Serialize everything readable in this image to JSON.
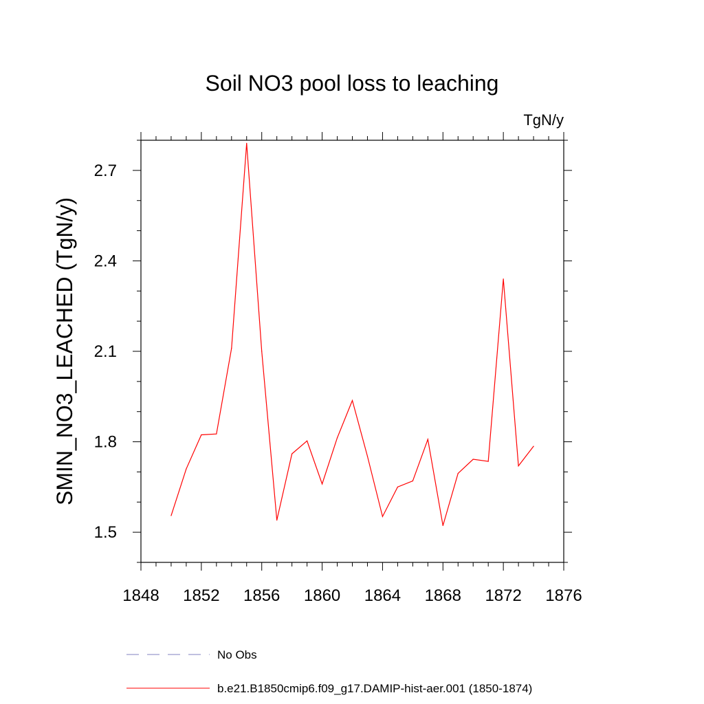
{
  "chart_data": {
    "type": "line",
    "title": "Soil NO3 pool loss to leaching",
    "units": "TgN/y",
    "xlabel": "",
    "ylabel": "SMIN_NO3_LEACHED  (TgN/y)",
    "xlim": [
      1848,
      1876
    ],
    "ylim": [
      1.4,
      2.8
    ],
    "xticks": [
      "1848",
      "1852",
      "1856",
      "1860",
      "1864",
      "1868",
      "1872",
      "1876"
    ],
    "yticks": [
      "1.5",
      "1.8",
      "2.1",
      "2.4",
      "2.7"
    ],
    "grid": false,
    "legend_position": "bottom",
    "series": [
      {
        "name": "b.e21.B1850cmip6.f09_g17.DAMIP-hist-aer.001 (1850-1874)",
        "color": "#ff0000",
        "style": "solid",
        "x": [
          1850,
          1851,
          1852,
          1853,
          1854,
          1855,
          1856,
          1857,
          1858,
          1859,
          1860,
          1861,
          1862,
          1863,
          1864,
          1865,
          1866,
          1867,
          1868,
          1869,
          1870,
          1871,
          1872,
          1873,
          1874
        ],
        "values": [
          1.555,
          1.71,
          1.823,
          1.826,
          2.11,
          2.79,
          2.1,
          1.54,
          1.76,
          1.803,
          1.66,
          1.813,
          1.937,
          1.752,
          1.552,
          1.65,
          1.67,
          1.808,
          1.522,
          1.695,
          1.742,
          1.735,
          2.34,
          1.72,
          1.785
        ]
      }
    ],
    "legend": [
      {
        "label": "No Obs",
        "color": "#8080c0",
        "style": "dashed"
      },
      {
        "label": "b.e21.B1850cmip6.f09_g17.DAMIP-hist-aer.001 (1850-1874)",
        "color": "#ff0000",
        "style": "solid"
      }
    ]
  }
}
